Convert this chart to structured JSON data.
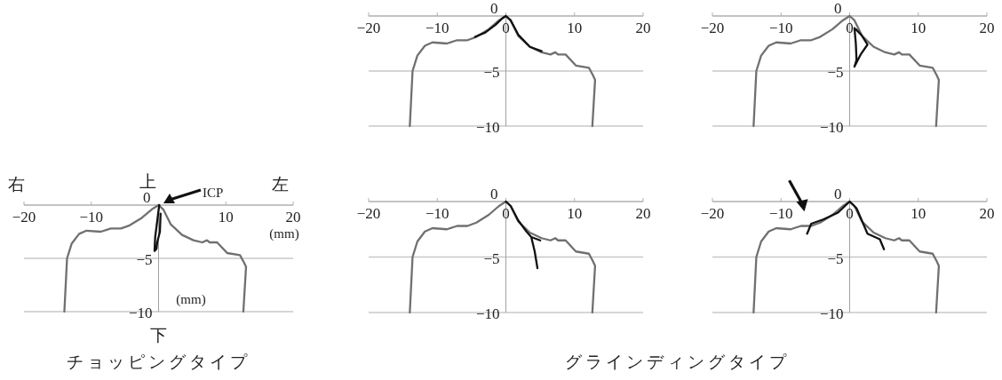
{
  "chart_data": [
    {
      "type": "line",
      "xlim": [
        -20,
        20
      ],
      "ylim": [
        -10,
        0
      ],
      "xticks": [
        -20,
        -10,
        0,
        10,
        20
      ],
      "yticks": [
        0,
        -5,
        -10
      ],
      "grid": "y",
      "marker": "none",
      "series": [
        {
          "color": "#707070",
          "x": [
            -14.0,
            -13.6,
            -12.9,
            -11.8,
            -10.7,
            -8.6,
            -7.1,
            -5.6,
            -4.3,
            -2.5,
            -1.0,
            0,
            0.7,
            1.8,
            3.5,
            5.2,
            6.5,
            7.2,
            7.6,
            8.7,
            10.2,
            12.1,
            12.7,
            13.0,
            12.6
          ],
          "values": [
            -10,
            -5,
            -3.6,
            -2.7,
            -2.4,
            -2.5,
            -2.2,
            -2.2,
            -1.9,
            -1.2,
            -0.4,
            0,
            -0.4,
            -1.8,
            -2.8,
            -3.3,
            -3.5,
            -3.3,
            -3.5,
            -3.5,
            -4.5,
            -4.7,
            -5.4,
            -5.8,
            -10
          ]
        },
        {
          "color": "#111111",
          "x": [
            -4.5,
            -3,
            -1.5,
            -0.5,
            0,
            0.7,
            1.8,
            3.5,
            5.2
          ],
          "values": [
            -1.9,
            -1.5,
            -0.8,
            -0.2,
            0,
            -0.4,
            -1.7,
            -2.8,
            -3.2
          ]
        }
      ]
    },
    {
      "type": "line",
      "xlim": [
        -20,
        20
      ],
      "ylim": [
        -10,
        0
      ],
      "xticks": [
        -20,
        -10,
        0,
        10,
        20
      ],
      "yticks": [
        0,
        -5,
        -10
      ],
      "grid": "y",
      "marker": "none",
      "series": [
        {
          "color": "#707070",
          "x": [
            -14.0,
            -13.6,
            -12.9,
            -11.8,
            -10.7,
            -8.6,
            -7.1,
            -5.6,
            -4.3,
            -2.5,
            -1.0,
            0,
            0.7,
            1.8,
            3.5,
            5.2,
            6.5,
            7.2,
            7.6,
            8.7,
            10.2,
            12.1,
            12.7,
            13.0,
            12.6
          ],
          "values": [
            -10,
            -5,
            -3.6,
            -2.7,
            -2.4,
            -2.5,
            -2.2,
            -2.2,
            -1.9,
            -1.2,
            -0.4,
            0,
            -0.4,
            -1.8,
            -2.8,
            -3.3,
            -3.5,
            -3.3,
            -3.5,
            -3.5,
            -4.5,
            -4.7,
            -5.4,
            -5.8,
            -10
          ]
        },
        {
          "color": "#111111",
          "x": [
            0.7,
            0.9,
            1.0,
            0.7,
            1.6,
            2.6,
            1.8,
            0.9
          ],
          "values": [
            -1.1,
            -2.5,
            -4.0,
            -4.6,
            -3.5,
            -2.6,
            -1.8,
            -1.2
          ]
        }
      ]
    },
    {
      "type": "line",
      "title": "チョッピングタイプ",
      "xlim": [
        -20,
        20
      ],
      "ylim": [
        -10,
        0
      ],
      "xticks": [
        -20,
        -10,
        10,
        20
      ],
      "yticks": [
        0,
        -5,
        -10
      ],
      "grid": "y",
      "marker": "none",
      "annotations": [
        "右",
        "上",
        "左",
        "下",
        "ICP",
        "(mm)",
        "(mm)"
      ],
      "series": [
        {
          "color": "#707070",
          "x": [
            -14.0,
            -13.6,
            -12.9,
            -11.8,
            -10.7,
            -8.6,
            -7.1,
            -5.6,
            -4.3,
            -2.5,
            -1.0,
            0,
            0.7,
            1.8,
            3.5,
            5.2,
            6.5,
            7.2,
            7.6,
            8.7,
            10.2,
            12.1,
            12.7,
            13.0,
            12.6
          ],
          "values": [
            -10,
            -5,
            -3.6,
            -2.7,
            -2.4,
            -2.5,
            -2.2,
            -2.2,
            -1.9,
            -1.2,
            -0.4,
            0,
            -0.4,
            -1.8,
            -2.8,
            -3.3,
            -3.5,
            -3.3,
            -3.5,
            -3.5,
            -4.5,
            -4.7,
            -5.4,
            -5.8,
            -10
          ]
        },
        {
          "color": "#111111",
          "x": [
            0.1,
            -0.2,
            -0.5,
            -0.6,
            -0.3,
            -0.2,
            0.2,
            0.3
          ],
          "values": [
            0,
            -1.5,
            -3,
            -4.3,
            -4.1,
            -3.5,
            -2.5,
            -0.8
          ]
        }
      ]
    },
    {
      "type": "line",
      "title": "グラインディングタイプ",
      "xlim": [
        -20,
        20
      ],
      "ylim": [
        -10,
        0
      ],
      "xticks": [
        -20,
        -10,
        0,
        10,
        20
      ],
      "yticks": [
        0,
        -5,
        -10
      ],
      "grid": "y",
      "marker": "none",
      "series": [
        {
          "color": "#707070",
          "x": [
            -14.0,
            -13.6,
            -12.9,
            -11.8,
            -10.7,
            -8.6,
            -7.1,
            -5.6,
            -4.3,
            -2.5,
            -1.0,
            0,
            0.7,
            1.8,
            3.5,
            5.2,
            6.5,
            7.2,
            7.6,
            8.7,
            10.2,
            12.1,
            12.7,
            13.0,
            12.6
          ],
          "values": [
            -10,
            -5,
            -3.6,
            -2.7,
            -2.4,
            -2.5,
            -2.2,
            -2.2,
            -1.9,
            -1.2,
            -0.4,
            0,
            -0.4,
            -1.8,
            -2.8,
            -3.3,
            -3.5,
            -3.3,
            -3.5,
            -3.5,
            -4.5,
            -4.7,
            -5.4,
            -5.8,
            -10
          ]
        },
        {
          "color": "#111111",
          "x": [
            0,
            0.7,
            1.8,
            3.0,
            3.7,
            5.0,
            3.7,
            4.2,
            4.6
          ],
          "values": [
            0,
            -0.4,
            -1.7,
            -2.7,
            -3.2,
            -3.5,
            -3.2,
            -4.5,
            -6.0
          ]
        }
      ]
    },
    {
      "type": "line",
      "xlim": [
        -20,
        20
      ],
      "ylim": [
        -10,
        0
      ],
      "xticks": [
        -20,
        -10,
        0,
        10,
        20
      ],
      "yticks": [
        0,
        -5,
        -10
      ],
      "grid": "y",
      "marker": "none",
      "series": [
        {
          "color": "#707070",
          "x": [
            -14.0,
            -13.6,
            -12.9,
            -11.8,
            -10.7,
            -8.6,
            -7.1,
            -5.6,
            -4.3,
            -2.5,
            -1.0,
            0,
            0.7,
            1.8,
            3.5,
            5.2,
            6.5,
            7.2,
            7.6,
            8.7,
            10.2,
            12.1,
            12.7,
            13.0,
            12.6
          ],
          "values": [
            -10,
            -5,
            -3.6,
            -2.7,
            -2.4,
            -2.5,
            -2.2,
            -2.2,
            -1.9,
            -1.2,
            -0.4,
            0,
            -0.4,
            -1.8,
            -2.8,
            -3.3,
            -3.5,
            -3.3,
            -3.5,
            -3.5,
            -4.5,
            -4.7,
            -5.4,
            -5.8,
            -10
          ]
        },
        {
          "color": "#111111",
          "x": [
            -6.2,
            -5.6,
            -3.8,
            -1.7,
            0,
            1.0,
            2.6,
            4.4,
            5.0
          ],
          "values": [
            -2.9,
            -2.0,
            -1.6,
            -1.0,
            0,
            -0.6,
            -2.9,
            -3.4,
            -4.3
          ]
        }
      ]
    }
  ]
}
